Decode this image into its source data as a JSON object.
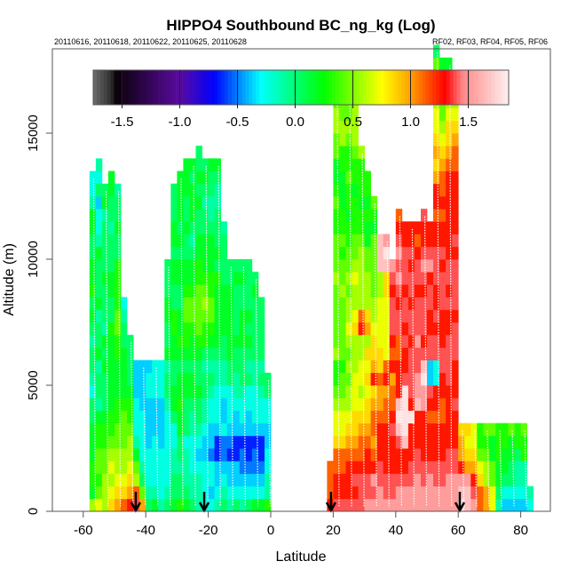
{
  "chart_data": {
    "type": "heatmap",
    "title": "HIPPO4 Southbound BC_ng_kg (Log)",
    "subtitle_left": "20110616, 20110618, 20110622, 20110625, 20110628",
    "subtitle_right": "RF02, RF03, RF04, RF05, RF06",
    "xlabel": "Latitude",
    "ylabel": "Altitude (m)",
    "xlim": [
      -70,
      90
    ],
    "ylim": [
      0,
      18300
    ],
    "x_ticks": [
      -60,
      -40,
      -20,
      0,
      20,
      40,
      60,
      80
    ],
    "x_tick_labels": [
      "-60",
      "-40",
      "-20",
      "0",
      "20",
      "40",
      "60",
      "80"
    ],
    "y_ticks": [
      0,
      5000,
      10000,
      15000
    ],
    "y_tick_labels": [
      "0",
      "5000",
      "10000",
      "15000"
    ],
    "colorbar": {
      "range": [
        -1.75,
        1.85
      ],
      "ticks": [
        -1.5,
        -1.0,
        -0.5,
        0.0,
        0.5,
        1.0,
        1.5
      ],
      "tick_labels": [
        "-1.5",
        "-1.0",
        "-0.5",
        "0.0",
        "0.5",
        "1.0",
        "1.5"
      ],
      "stops": [
        {
          "v": -1.75,
          "color": "#6e6e6e"
        },
        {
          "v": -1.6,
          "color": "#303030"
        },
        {
          "v": -1.55,
          "color": "#0a0008"
        },
        {
          "v": -1.0,
          "color": "#5a0aa0"
        },
        {
          "v": -0.7,
          "color": "#0000ff"
        },
        {
          "v": -0.3,
          "color": "#00ffff"
        },
        {
          "v": 0.25,
          "color": "#00ff00"
        },
        {
          "v": 0.75,
          "color": "#ffff00"
        },
        {
          "v": 1.0,
          "color": "#ffa000"
        },
        {
          "v": 1.3,
          "color": "#ff0000"
        },
        {
          "v": 1.45,
          "color": "#ff8888"
        },
        {
          "v": 1.85,
          "color": "#fff0f0"
        }
      ]
    },
    "flight_start_arrows_lat": [
      -43.2,
      -21.3,
      19.3,
      60.5
    ],
    "grid": false,
    "bin_lat_deg": 2,
    "bin_alt_m": 500,
    "value_code": "characters a..z map linearly to log10 BC from -1.6 to 1.8; '.' = no data; rows listed from 0 m upward",
    "columns": [
      {
        "lat": -57,
        "col": "qnoonnnmmklmmlmnmonnmmnnlkk.."
      },
      {
        "lat": -55,
        "col": "rpoppoonlmmlnmmlnmmmnlkkjmkl"
      },
      {
        "lat": -53,
        "col": "qqqppoonmmmnmnlmmmnmmmmlnm.."
      },
      {
        "lat": -51,
        "col": "srqrqpoonnnnnnommnnmmmlmmnn"
      },
      {
        "lat": -49,
        "col": "tsrqqppoonnnooppoooommnmml"
      },
      {
        "lat": -47,
        "col": "usrqqppponnnnmmlk........."
      },
      {
        "lat": -45,
        "col": "vtsrqqpoonmmmm............"
      },
      {
        "lat": -43,
        "col": "wuqpnlkkkjjj.............."
      },
      {
        "lat": -41,
        "col": "tpmlkkkkjjjj.............."
      },
      {
        "lat": -39,
        "col": "mlkkkjjjjkkj.............."
      },
      {
        "lat": -37,
        "col": "nlkkkkjjjkkk.............."
      },
      {
        "lat": -35,
        "col": "lkkkkjjjjkkk.............."
      },
      {
        "lat": -33,
        "col": "mlkkkkkklmmlnmmnnmmm......"
      },
      {
        "lat": -31,
        "col": "nmmllkkmnnmmnnoommnnmnnmmm"
      },
      {
        "lat": -29,
        "col": "ommlmmnnonnmnonnmmnnmnmnnnn"
      },
      {
        "lat": -27,
        "col": "nmlllkmmmnnmnoopponnmmnmmnnn"
      },
      {
        "lat": -25,
        "col": "mllkkkllmnnmnnopponnmlmnnnmn"
      },
      {
        "lat": -23,
        "col": "lllkjklmmnmmnoppppoonnmmnmnmm"
      },
      {
        "lat": -21,
        "col": "kkkkjjkllmmlmoopqponnnmmlmnm"
      },
      {
        "lat": -19,
        "col": "kjkkijjkklmlmnoppoonnnmllmmn"
      },
      {
        "lat": -17,
        "col": "lkjjhhjkkkllmnnnnnomnmmmllmn"
      },
      {
        "lat": -15,
        "col": "mlkjiikjjkllmmnnnnmmmml.."
      },
      {
        "lat": -13,
        "col": "lkjjhijkkkmmnnnnnnmm....."
      },
      {
        "lat": -11,
        "col": "mkjjhhjjkllmmnmmmmnm....."
      },
      {
        "lat": -9,
        "col": "lkjiihjkklmmmnnnmmnm....."
      },
      {
        "lat": -7,
        "col": "mkjihhjjkkmlmnmnmmmm....."
      },
      {
        "lat": -5,
        "col": "nkjiihjkkkllmmmmmnm......"
      },
      {
        "lat": -3,
        "col": "nkjihhjkklmlmmmmm........"
      },
      {
        "lat": -1,
        "col": "ollkkjjkkmm.............."
      },
      {
        "lat": 19,
        "col": "vuuu....................."
      },
      {
        "lat": 21,
        "col": "wvvuusrrqpooqpppppqpppooponnppqqp"
      },
      {
        "lat": 23,
        "col": "wvvuusrrqppopppppqppopoonnnooqqpp"
      },
      {
        "lat": 25,
        "col": "wvvvutsrqqpqpqrqqpqppoonoopoopqpp"
      },
      {
        "lat": 27,
        "col": "wvwvutssrrrqqqsrqqrqppooonoopqqqq"
      },
      {
        "lat": 29,
        "col": "wwwvuutsrqrrqqvuqqqqqpoonoooq"
      },
      {
        "lat": 31,
        "col": "xwwvvutssrsrsqtsqqqppnnonoo"
      },
      {
        "lat": 33,
        "col": "xwxvutuutsvtssrqqpppppnop"
      },
      {
        "lat": 35,
        "col": "xxwwvvvuttussrrrrqqyyy"
      },
      {
        "lat": 37,
        "col": "xwwvvvvuutvurrrrrssyzx"
      },
      {
        "lat": 39,
        "col": "xwwvvvwvuutvuvwwwvwx"
      },
      {
        "lat": 41,
        "col": "xxwvvwyzyvvvuuwwvwxwxwvu"
      },
      {
        "lat": 43,
        "col": "xxwvvyzzzzwvvwvwwvwwwvv"
      },
      {
        "lat": 45,
        "col": "xxwwvvvzvwwwwvwwvwwvwvv"
      },
      {
        "lat": 47,
        "col": "xxxwwvvvyxxwwxwwwvwwvuv"
      },
      {
        "lat": 49,
        "col": "xxwwvvvvxxzywvwwwvwxwvvw"
      },
      {
        "lat": 51,
        "col": "xxxwvvvuvwjjwwvvwwvxwvv"
      },
      {
        "lat": 53,
        "col": "xxwwvvvuvvkkwwvwvvwwwvvuvvtstsrrqoopm"
      },
      {
        "lat": 55,
        "col": "xxwwvvvuuvvwwvvvwwwvwvvuvuutsrqppoon"
      },
      {
        "lat": 57,
        "col": "xxxwwvvvvvwwwwvvwvwwvvvvvvvutssrqqpn"
      },
      {
        "lat": 59,
        "col": "xxxwwvvvwvvvwwwvwwwwvwvvvvvuutsrqq"
      },
      {
        "lat": 61,
        "col": "zyxvtts"
      },
      {
        "lat": 63,
        "col": "yyxtsrs"
      },
      {
        "lat": 65,
        "col": "xwvtsrr"
      },
      {
        "lat": 67,
        "col": "uusrpoo"
      },
      {
        "lat": 69,
        "col": "ttqqpop"
      },
      {
        "lat": 71,
        "col": "rrppnnp"
      },
      {
        "lat": 73,
        "col": "lmnnooo"
      },
      {
        "lat": 75,
        "col": "jkmnnoo"
      },
      {
        "lat": 77,
        "col": "jkmmnnp"
      },
      {
        "lat": 79,
        "col": "jkllmoo"
      },
      {
        "lat": 81,
        "col": "jklloop"
      },
      {
        "lat": 83,
        "col": "kl"
      }
    ]
  }
}
